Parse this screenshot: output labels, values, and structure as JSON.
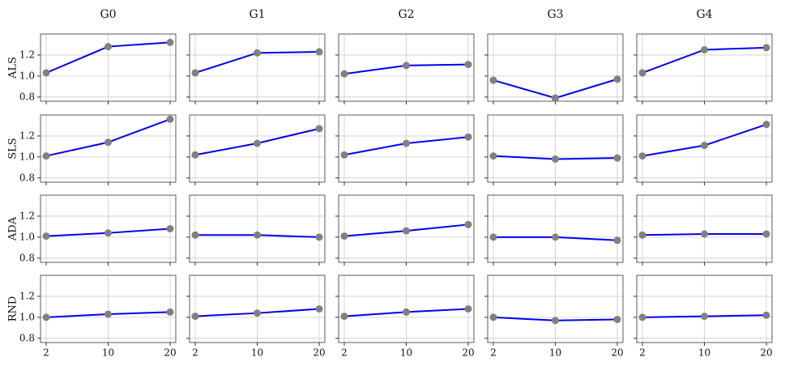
{
  "chart_data": [
    {
      "type": "line",
      "title": "G0",
      "ylabel": "ALS",
      "categories": [
        2,
        10,
        20
      ],
      "values": [
        1.03,
        1.28,
        1.32
      ],
      "color": "#0000ee",
      "marker_color": "#808080",
      "ylim": [
        0.76,
        1.4
      ],
      "yticks": [
        0.8,
        {
          "value": 1.0,
          "label": "1.0"
        },
        1.2
      ],
      "grid": true
    },
    {
      "type": "line",
      "title": "G1",
      "categories": [
        2,
        10,
        20
      ],
      "values": [
        1.03,
        1.22,
        1.23
      ],
      "color": "#0000ee",
      "marker_color": "#808080",
      "ylim": [
        0.76,
        1.4
      ],
      "grid": true
    },
    {
      "type": "line",
      "title": "G2",
      "categories": [
        2,
        10,
        20
      ],
      "values": [
        1.02,
        1.1,
        1.11
      ],
      "color": "#0000ee",
      "marker_color": "#808080",
      "ylim": [
        0.76,
        1.4
      ],
      "grid": true
    },
    {
      "type": "line",
      "title": "G3",
      "categories": [
        2,
        10,
        20
      ],
      "values": [
        0.96,
        0.79,
        0.97
      ],
      "color": "#0000ee",
      "marker_color": "#808080",
      "ylim": [
        0.76,
        1.4
      ],
      "grid": true
    },
    {
      "type": "line",
      "title": "G4",
      "categories": [
        2,
        10,
        20
      ],
      "values": [
        1.03,
        1.25,
        1.27
      ],
      "color": "#0000ee",
      "marker_color": "#808080",
      "ylim": [
        0.76,
        1.4
      ],
      "grid": true
    },
    {
      "type": "line",
      "ylabel": "SLS",
      "categories": [
        2,
        10,
        20
      ],
      "values": [
        1.01,
        1.14,
        1.36
      ],
      "color": "#0000ee",
      "marker_color": "#808080",
      "ylim": [
        0.76,
        1.4
      ],
      "yticks": [
        0.8,
        {
          "value": 1.0,
          "label": "1.0"
        },
        1.2
      ],
      "grid": true
    },
    {
      "type": "line",
      "categories": [
        2,
        10,
        20
      ],
      "values": [
        1.02,
        1.13,
        1.27
      ],
      "color": "#0000ee",
      "marker_color": "#808080",
      "ylim": [
        0.76,
        1.4
      ],
      "grid": true
    },
    {
      "type": "line",
      "categories": [
        2,
        10,
        20
      ],
      "values": [
        1.02,
        1.13,
        1.19
      ],
      "color": "#0000ee",
      "marker_color": "#808080",
      "ylim": [
        0.76,
        1.4
      ],
      "grid": true
    },
    {
      "type": "line",
      "categories": [
        2,
        10,
        20
      ],
      "values": [
        1.01,
        0.98,
        0.99
      ],
      "color": "#0000ee",
      "marker_color": "#808080",
      "ylim": [
        0.76,
        1.4
      ],
      "grid": true
    },
    {
      "type": "line",
      "categories": [
        2,
        10,
        20
      ],
      "values": [
        1.01,
        1.11,
        1.31
      ],
      "color": "#0000ee",
      "marker_color": "#808080",
      "ylim": [
        0.76,
        1.4
      ],
      "grid": true
    },
    {
      "type": "line",
      "ylabel": "ADA",
      "categories": [
        2,
        10,
        20
      ],
      "values": [
        1.01,
        1.04,
        1.08
      ],
      "color": "#0000ee",
      "marker_color": "#808080",
      "ylim": [
        0.76,
        1.4
      ],
      "yticks": [
        0.8,
        {
          "value": 1.0,
          "label": "1.0"
        },
        1.2
      ],
      "grid": true
    },
    {
      "type": "line",
      "categories": [
        2,
        10,
        20
      ],
      "values": [
        1.02,
        1.02,
        1.0
      ],
      "color": "#0000ee",
      "marker_color": "#808080",
      "ylim": [
        0.76,
        1.4
      ],
      "grid": true
    },
    {
      "type": "line",
      "categories": [
        2,
        10,
        20
      ],
      "values": [
        1.01,
        1.06,
        1.12
      ],
      "color": "#0000ee",
      "marker_color": "#808080",
      "ylim": [
        0.76,
        1.4
      ],
      "grid": true
    },
    {
      "type": "line",
      "categories": [
        2,
        10,
        20
      ],
      "values": [
        1.0,
        1.0,
        0.97
      ],
      "color": "#0000ee",
      "marker_color": "#808080",
      "ylim": [
        0.76,
        1.4
      ],
      "grid": true
    },
    {
      "type": "line",
      "categories": [
        2,
        10,
        20
      ],
      "values": [
        1.02,
        1.03,
        1.03
      ],
      "color": "#0000ee",
      "marker_color": "#808080",
      "ylim": [
        0.76,
        1.4
      ],
      "grid": true
    },
    {
      "type": "line",
      "ylabel": "RND",
      "categories": [
        2,
        10,
        20
      ],
      "values": [
        1.0,
        1.03,
        1.05
      ],
      "color": "#0000ee",
      "marker_color": "#808080",
      "ylim": [
        0.76,
        1.4
      ],
      "yticks": [
        0.8,
        {
          "value": 1.0,
          "label": "1.0"
        },
        1.2
      ],
      "grid": true
    },
    {
      "type": "line",
      "categories": [
        2,
        10,
        20
      ],
      "values": [
        1.01,
        1.04,
        1.08
      ],
      "color": "#0000ee",
      "marker_color": "#808080",
      "ylim": [
        0.76,
        1.4
      ],
      "grid": true
    },
    {
      "type": "line",
      "categories": [
        2,
        10,
        20
      ],
      "values": [
        1.01,
        1.05,
        1.08
      ],
      "color": "#0000ee",
      "marker_color": "#808080",
      "ylim": [
        0.76,
        1.4
      ],
      "grid": true
    },
    {
      "type": "line",
      "categories": [
        2,
        10,
        20
      ],
      "values": [
        1.0,
        0.97,
        0.98
      ],
      "color": "#0000ee",
      "marker_color": "#808080",
      "ylim": [
        0.76,
        1.4
      ],
      "grid": true
    },
    {
      "type": "line",
      "categories": [
        2,
        10,
        20
      ],
      "values": [
        1.0,
        1.01,
        1.02
      ],
      "color": "#0000ee",
      "marker_color": "#808080",
      "ylim": [
        0.76,
        1.4
      ],
      "grid": true
    }
  ]
}
